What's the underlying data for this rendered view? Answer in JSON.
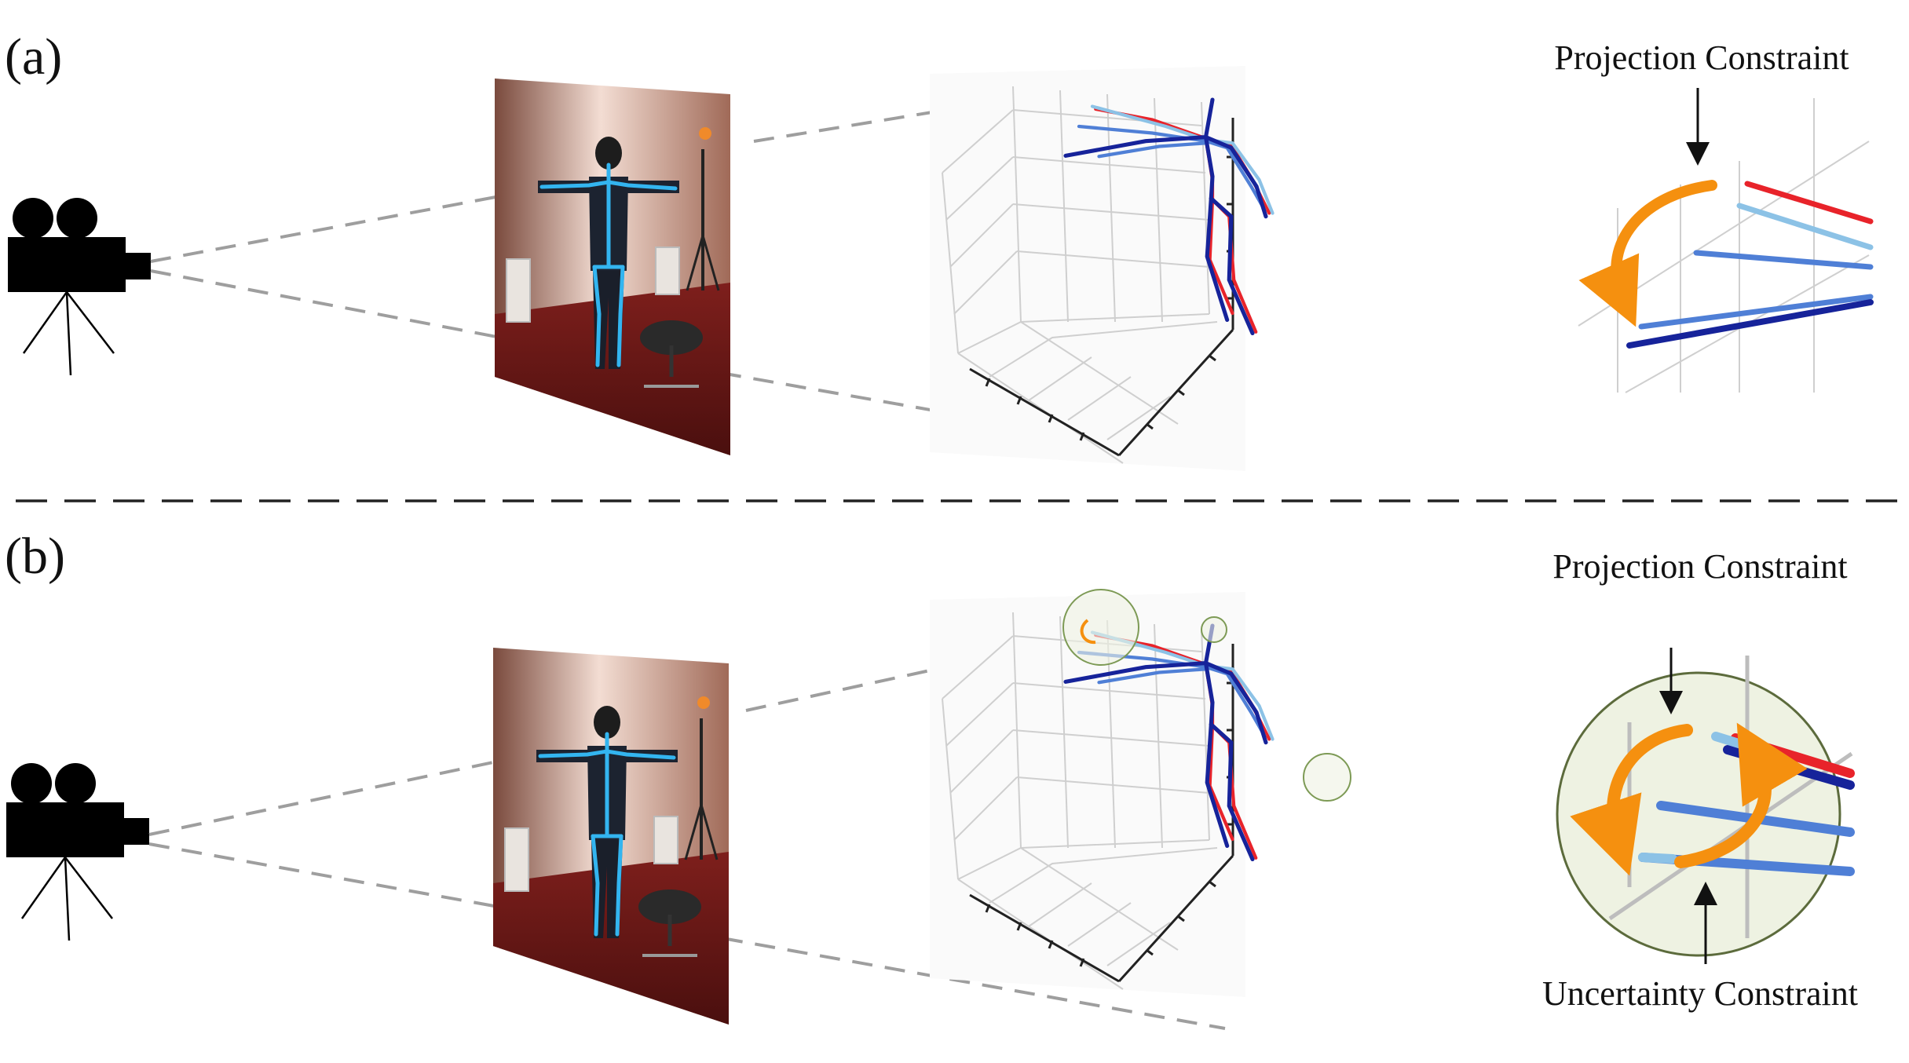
{
  "panels": [
    {
      "label": "(a)",
      "constraints": [
        {
          "text": "Projection Constraint"
        }
      ]
    },
    {
      "label": "(b)",
      "constraints": [
        {
          "text": "Projection Constraint"
        },
        {
          "text": "Uncertainty Constraint"
        }
      ]
    }
  ],
  "colors": {
    "prediction_red": "#e8232a",
    "pose_dark_blue": "#16239a",
    "pose_mid_blue": "#4f7fd6",
    "pose_light_blue": "#8cc2e6",
    "arrow_orange": "#f5900f",
    "uncertainty_fill": "#eef2e2",
    "skeleton_overlay": "#33b5f0"
  },
  "icons": [
    "movie-camera-icon",
    "projection-arrow-icon",
    "uncertainty-circle-icon"
  ]
}
